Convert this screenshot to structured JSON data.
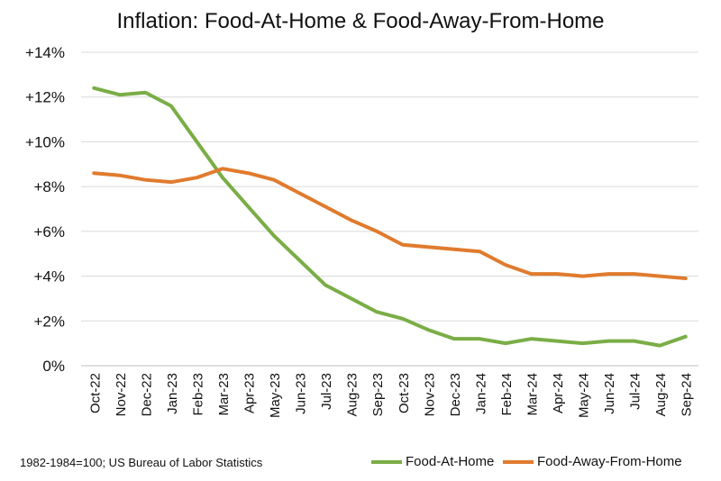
{
  "chart_data": {
    "type": "line",
    "title": "Inflation: Food-At-Home & Food-Away-From-Home",
    "categories": [
      "Oct-22",
      "Nov-22",
      "Dec-22",
      "Jan-23",
      "Feb-23",
      "Mar-23",
      "Apr-23",
      "May-23",
      "Jun-23",
      "Jul-23",
      "Aug-23",
      "Sep-23",
      "Oct-23",
      "Nov-23",
      "Dec-23",
      "Jan-24",
      "Feb-24",
      "Mar-24",
      "Apr-24",
      "May-24",
      "Jun-24",
      "Jul-24",
      "Aug-24",
      "Sep-24"
    ],
    "series": [
      {
        "name": "Food-At-Home",
        "color": "#7AAD46",
        "values": [
          12.4,
          12.1,
          12.2,
          11.6,
          10.0,
          8.4,
          7.1,
          5.8,
          4.7,
          3.6,
          3.0,
          2.4,
          2.1,
          1.6,
          1.2,
          1.2,
          1.0,
          1.2,
          1.1,
          1.0,
          1.1,
          1.1,
          0.9,
          1.3
        ]
      },
      {
        "name": "Food-Away-From-Home",
        "color": "#E07B2E",
        "values": [
          8.6,
          8.5,
          8.3,
          8.2,
          8.4,
          8.8,
          8.6,
          8.3,
          7.7,
          7.1,
          6.5,
          6.0,
          5.4,
          5.3,
          5.2,
          5.1,
          4.5,
          4.1,
          4.1,
          4.0,
          4.1,
          4.1,
          4.0,
          3.9
        ]
      }
    ],
    "ylim": [
      0,
      14
    ],
    "yticks": [
      "0%",
      "+2%",
      "+4%",
      "+6%",
      "+8%",
      "+10%",
      "+12%",
      "+14%"
    ],
    "grid": true,
    "legend": "bottom-right",
    "note": "1982-1984=100; US Bureau of Labor Statistics"
  }
}
